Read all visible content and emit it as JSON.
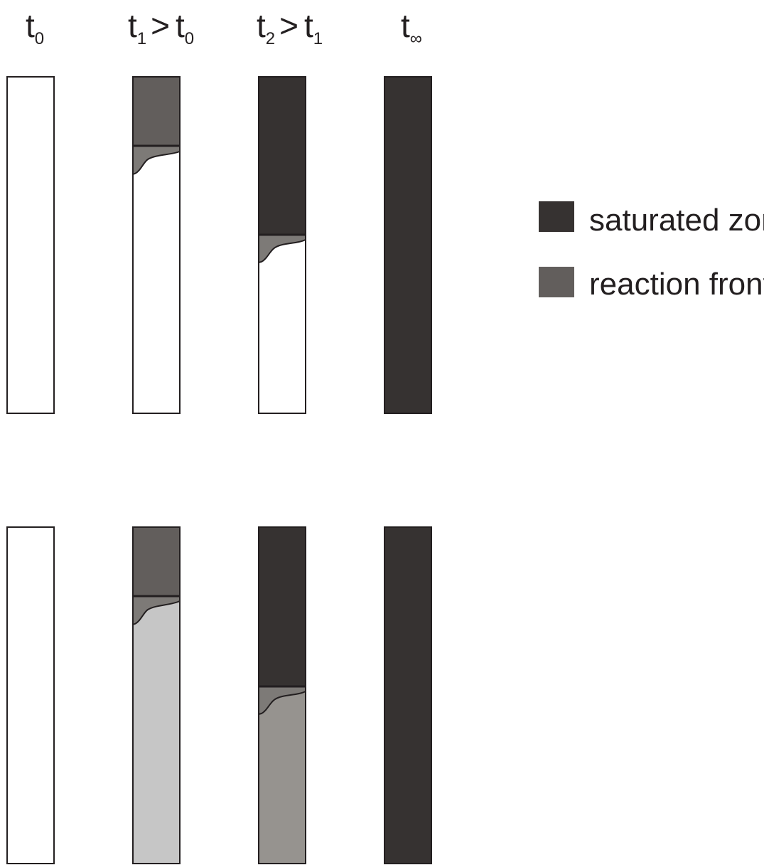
{
  "headers": [
    {
      "main": "t",
      "sub": "0",
      "rel": "",
      "main2": "",
      "sub2": ""
    },
    {
      "main": "t",
      "sub": "1",
      "rel": ">",
      "main2": "t",
      "sub2": "0"
    },
    {
      "main": "t",
      "sub": "2",
      "rel": ">",
      "main2": "t",
      "sub2": "1"
    },
    {
      "main": "t",
      "sub": "∞",
      "rel": "",
      "main2": "",
      "sub2": ""
    }
  ],
  "legend": [
    {
      "label": "saturated zone",
      "color": "#363231"
    },
    {
      "label": "reaction front",
      "color": "#625e5c"
    }
  ],
  "colors": {
    "outline": "#231f20",
    "white": "#ffffff",
    "saturated": "#363231",
    "reaction_front": "#625e5c",
    "light_gray": "#c6c6c6",
    "medium_gray": "#96938f"
  },
  "rows": [
    {
      "columns": [
        {
          "time": "t0",
          "state": "unsaturated",
          "background": "white"
        },
        {
          "time": "t1",
          "state": "partially saturated",
          "background": "white",
          "top_fill": "reaction_front"
        },
        {
          "time": "t2",
          "state": "partially saturated",
          "background": "white",
          "top_fill": "saturated"
        },
        {
          "time": "t_inf",
          "state": "fully saturated",
          "background": "saturated"
        }
      ]
    },
    {
      "columns": [
        {
          "time": "t0",
          "state": "unsaturated",
          "background": "white"
        },
        {
          "time": "t1",
          "state": "partially saturated",
          "background": "light_gray",
          "top_fill": "reaction_front"
        },
        {
          "time": "t2",
          "state": "partially saturated",
          "background": "medium_gray",
          "top_fill": "saturated"
        },
        {
          "time": "t_inf",
          "state": "fully saturated",
          "background": "saturated"
        }
      ]
    }
  ]
}
